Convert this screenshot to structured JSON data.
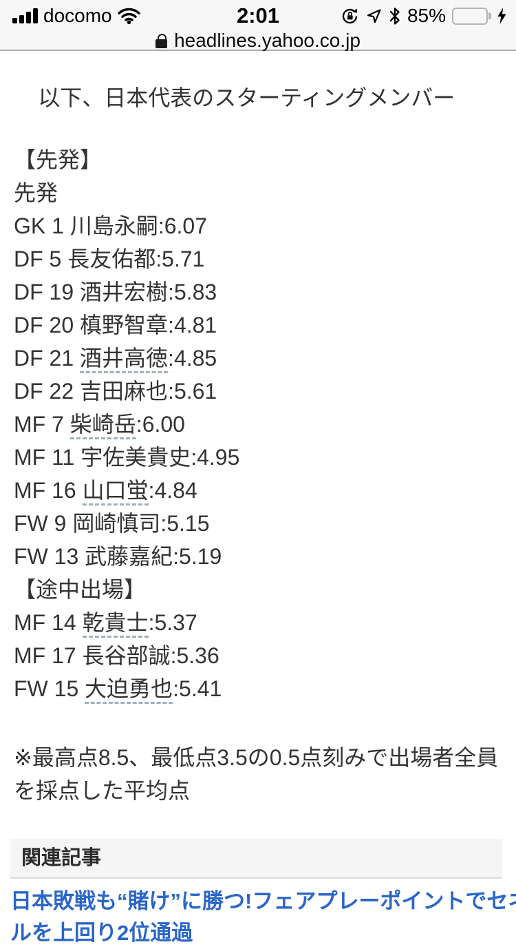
{
  "status_bar": {
    "carrier": "docomo",
    "time": "2:01",
    "battery_percent": "85%",
    "icons": {
      "signal": "signal-strength-4-bars",
      "wifi": "wifi",
      "rotation_lock": "orientation-lock",
      "location": "location-arrow",
      "bluetooth": "bluetooth",
      "battery": "battery",
      "bolt": "charging-bolt"
    }
  },
  "url_bar": {
    "ssl_icon": "lock",
    "domain": "headlines.yahoo.co.jp"
  },
  "article": {
    "intro": "以下、日本代表のスターティングメンバー",
    "starters_bracket_header": "【先発】",
    "starters_label": "先発",
    "starters": [
      {
        "pos": "GK",
        "num": "1",
        "name": "川島永嗣",
        "score": "6.07",
        "linked": false
      },
      {
        "pos": "DF",
        "num": "5",
        "name": "長友佑都",
        "score": "5.71",
        "linked": false
      },
      {
        "pos": "DF",
        "num": "19",
        "name": "酒井宏樹",
        "score": "5.83",
        "linked": false
      },
      {
        "pos": "DF",
        "num": "20",
        "name": "槙野智章",
        "score": "4.81",
        "linked": false
      },
      {
        "pos": "DF",
        "num": "21",
        "name": "酒井高徳",
        "score": "4.85",
        "linked": true
      },
      {
        "pos": "DF",
        "num": "22",
        "name": "吉田麻也",
        "score": "5.61",
        "linked": false
      },
      {
        "pos": "MF",
        "num": "7",
        "name": "柴崎岳",
        "score": "6.00",
        "linked": true
      },
      {
        "pos": "MF",
        "num": "11",
        "name": "宇佐美貴史",
        "score": "4.95",
        "linked": false
      },
      {
        "pos": "MF",
        "num": "16",
        "name": "山口蛍",
        "score": "4.84",
        "linked": true
      },
      {
        "pos": "FW",
        "num": "9",
        "name": "岡崎慎司",
        "score": "5.15",
        "linked": false
      },
      {
        "pos": "FW",
        "num": "13",
        "name": "武藤嘉紀",
        "score": "5.19",
        "linked": false
      }
    ],
    "subs_bracket_header": "【途中出場】",
    "substitutes": [
      {
        "pos": "MF",
        "num": "14",
        "name": "乾貴士",
        "score": "5.37",
        "linked": true
      },
      {
        "pos": "MF",
        "num": "17",
        "name": "長谷部誠",
        "score": "5.36",
        "linked": false
      },
      {
        "pos": "FW",
        "num": "15",
        "name": "大迫勇也",
        "score": "5.41",
        "linked": true
      }
    ],
    "footnote": "※最高点8.5、最低点3.5の0.5点刻みで出場者全員を採点した平均点"
  },
  "related": {
    "header": "関連記事",
    "link_line1": "日本敗戦も“賭け”に勝つ!フェアプレーポイントでセネガ",
    "link_line2_partial": "ルを上回り2位通過"
  },
  "colors": {
    "link_blue": "#2a66c8",
    "battery_green": "#74d674",
    "keyword_underline": "#9db0bf",
    "body_text": "#333333",
    "chrome_bg": "#f7f7f7",
    "related_box_bg": "#f5f5f5"
  }
}
